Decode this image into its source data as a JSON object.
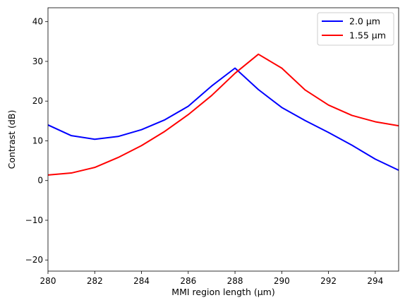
{
  "chart_data": {
    "type": "line",
    "title": "",
    "xlabel": "MMI region length (µm)",
    "ylabel": "Contrast (dB)",
    "xlim": [
      280,
      295
    ],
    "ylim": [
      -22.8,
      43.5
    ],
    "xticks": [
      280,
      282,
      284,
      286,
      288,
      290,
      292,
      294
    ],
    "yticks": [
      -20,
      -10,
      0,
      10,
      20,
      30,
      40
    ],
    "grid": false,
    "legend_position": "top-right",
    "x": [
      280,
      281,
      282,
      283,
      284,
      285,
      286,
      287,
      288,
      289,
      290,
      291,
      292,
      293,
      294,
      295
    ],
    "series": [
      {
        "name": "2.0 µm",
        "color": "#0000ff",
        "values": [
          14.0,
          11.3,
          10.4,
          11.1,
          12.8,
          15.3,
          18.7,
          23.8,
          28.3,
          22.9,
          18.4,
          15.1,
          12.1,
          8.9,
          5.4,
          2.6
        ]
      },
      {
        "name": "1.55 µm",
        "color": "#ff0000",
        "values": [
          1.4,
          1.9,
          3.3,
          5.8,
          8.8,
          12.4,
          16.6,
          21.4,
          27.0,
          31.8,
          28.3,
          22.8,
          19.0,
          16.4,
          14.8,
          13.8
        ]
      }
    ]
  }
}
